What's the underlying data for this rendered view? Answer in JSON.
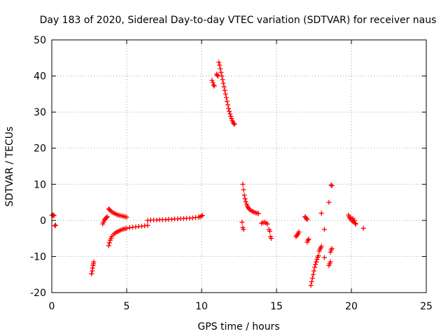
{
  "chart_data": {
    "type": "scatter",
    "title": "Day 183 of 2020, Sidereal Day-to-day VTEC variation (SDTVAR) for receiver naus",
    "xlabel": "GPS time / hours",
    "ylabel": "SDTVAR / TECUs",
    "xlim": [
      0,
      25
    ],
    "ylim": [
      -20,
      50
    ],
    "xticks": [
      0,
      5,
      10,
      15,
      20,
      25
    ],
    "yticks": [
      -20,
      -10,
      0,
      10,
      20,
      30,
      40,
      50
    ],
    "xtick_labels": [
      "0",
      "5",
      "10",
      "15",
      "20",
      "25"
    ],
    "ytick_labels": [
      "-20",
      "-10",
      "0",
      "10",
      "20",
      "30",
      "40",
      "50"
    ],
    "grid": true,
    "marker": "+",
    "color": "#ff0000",
    "series": [
      {
        "name": "SDTVAR",
        "points": [
          [
            0.0,
            1.5
          ],
          [
            0.05,
            1.4
          ],
          [
            0.1,
            1.5
          ],
          [
            0.15,
            1.3
          ],
          [
            0.2,
            -1.5
          ],
          [
            0.25,
            -1.3
          ],
          [
            2.65,
            -14.8
          ],
          [
            2.7,
            -14.0
          ],
          [
            2.72,
            -13.2
          ],
          [
            2.75,
            -12.5
          ],
          [
            2.78,
            -12.0
          ],
          [
            2.8,
            -11.5
          ],
          [
            3.4,
            -1.0
          ],
          [
            3.45,
            -0.5
          ],
          [
            3.5,
            0.0
          ],
          [
            3.55,
            0.3
          ],
          [
            3.6,
            0.6
          ],
          [
            3.65,
            0.8
          ],
          [
            3.7,
            1.0
          ],
          [
            3.8,
            -7.0
          ],
          [
            3.85,
            -6.2
          ],
          [
            3.9,
            -5.5
          ],
          [
            3.95,
            -5.0
          ],
          [
            4.0,
            -4.5
          ],
          [
            4.1,
            -4.0
          ],
          [
            4.2,
            -3.6
          ],
          [
            4.3,
            -3.3
          ],
          [
            4.4,
            -3.1
          ],
          [
            4.5,
            -2.9
          ],
          [
            4.6,
            -2.7
          ],
          [
            4.7,
            -2.5
          ],
          [
            4.8,
            -2.4
          ],
          [
            4.9,
            -2.3
          ],
          [
            5.0,
            -2.2
          ],
          [
            5.2,
            -2.0
          ],
          [
            5.4,
            -1.9
          ],
          [
            5.6,
            -1.8
          ],
          [
            5.8,
            -1.7
          ],
          [
            6.0,
            -1.6
          ],
          [
            6.2,
            -1.5
          ],
          [
            6.4,
            -1.4
          ],
          [
            3.8,
            3.2
          ],
          [
            3.85,
            3.0
          ],
          [
            3.9,
            2.7
          ],
          [
            4.0,
            2.4
          ],
          [
            4.1,
            2.1
          ],
          [
            4.2,
            1.9
          ],
          [
            4.3,
            1.7
          ],
          [
            4.4,
            1.5
          ],
          [
            4.5,
            1.4
          ],
          [
            4.6,
            1.3
          ],
          [
            4.7,
            1.2
          ],
          [
            4.8,
            1.1
          ],
          [
            4.9,
            1.0
          ],
          [
            5.0,
            0.9
          ],
          [
            6.4,
            0.0
          ],
          [
            6.6,
            0.1
          ],
          [
            6.8,
            0.1
          ],
          [
            7.0,
            0.1
          ],
          [
            7.2,
            0.2
          ],
          [
            7.4,
            0.2
          ],
          [
            7.6,
            0.2
          ],
          [
            7.8,
            0.3
          ],
          [
            8.0,
            0.3
          ],
          [
            8.2,
            0.4
          ],
          [
            8.4,
            0.4
          ],
          [
            8.6,
            0.5
          ],
          [
            8.8,
            0.5
          ],
          [
            9.0,
            0.6
          ],
          [
            9.2,
            0.6
          ],
          [
            9.4,
            0.7
          ],
          [
            9.6,
            0.8
          ],
          [
            9.8,
            0.9
          ],
          [
            9.9,
            1.0
          ],
          [
            10.0,
            1.2
          ],
          [
            10.05,
            1.4
          ],
          [
            10.7,
            38.8
          ],
          [
            10.75,
            38.2
          ],
          [
            10.8,
            37.5
          ],
          [
            10.85,
            37.2
          ],
          [
            11.0,
            40.5
          ],
          [
            11.05,
            40.2
          ],
          [
            11.1,
            40.0
          ],
          [
            11.15,
            43.8
          ],
          [
            11.2,
            43.0
          ],
          [
            11.25,
            42.0
          ],
          [
            11.3,
            41.0
          ],
          [
            11.35,
            40.0
          ],
          [
            11.4,
            39.0
          ],
          [
            11.45,
            38.0
          ],
          [
            11.5,
            37.0
          ],
          [
            11.55,
            36.0
          ],
          [
            11.6,
            35.0
          ],
          [
            11.65,
            34.0
          ],
          [
            11.7,
            33.0
          ],
          [
            11.75,
            32.0
          ],
          [
            11.8,
            31.0
          ],
          [
            11.85,
            30.2
          ],
          [
            11.9,
            29.5
          ],
          [
            11.95,
            28.8
          ],
          [
            12.0,
            28.2
          ],
          [
            12.05,
            27.6
          ],
          [
            12.1,
            27.2
          ],
          [
            12.15,
            26.8
          ],
          [
            12.2,
            26.6
          ],
          [
            12.7,
            -0.5
          ],
          [
            12.75,
            -2.0
          ],
          [
            12.8,
            -2.5
          ],
          [
            12.75,
            10.0
          ],
          [
            12.8,
            8.5
          ],
          [
            12.85,
            7.0
          ],
          [
            12.9,
            6.0
          ],
          [
            12.95,
            5.2
          ],
          [
            13.0,
            4.5
          ],
          [
            13.05,
            4.0
          ],
          [
            13.1,
            3.6
          ],
          [
            13.15,
            3.3
          ],
          [
            13.2,
            3.0
          ],
          [
            13.3,
            2.7
          ],
          [
            13.4,
            2.5
          ],
          [
            13.5,
            2.3
          ],
          [
            13.6,
            2.1
          ],
          [
            13.7,
            2.0
          ],
          [
            13.8,
            1.9
          ],
          [
            14.0,
            -0.8
          ],
          [
            14.1,
            -0.6
          ],
          [
            14.2,
            -0.5
          ],
          [
            14.3,
            -0.7
          ],
          [
            14.4,
            -1.0
          ],
          [
            14.5,
            -2.5
          ],
          [
            14.55,
            -3.0
          ],
          [
            14.6,
            -4.5
          ],
          [
            14.65,
            -5.0
          ],
          [
            16.3,
            -4.5
          ],
          [
            16.35,
            -4.2
          ],
          [
            16.4,
            -4.0
          ],
          [
            16.45,
            -3.6
          ],
          [
            16.5,
            -3.2
          ],
          [
            16.9,
            1.0
          ],
          [
            16.95,
            0.8
          ],
          [
            17.0,
            0.5
          ],
          [
            17.05,
            0.2
          ],
          [
            17.05,
            -6.0
          ],
          [
            17.1,
            -5.5
          ],
          [
            17.15,
            -5.2
          ],
          [
            17.3,
            -18.0
          ],
          [
            17.35,
            -17.0
          ],
          [
            17.4,
            -16.0
          ],
          [
            17.45,
            -15.0
          ],
          [
            17.5,
            -14.0
          ],
          [
            17.55,
            -13.0
          ],
          [
            17.6,
            -12.2
          ],
          [
            17.65,
            -11.5
          ],
          [
            17.7,
            -10.8
          ],
          [
            17.75,
            -10.2
          ],
          [
            17.8,
            -9.8
          ],
          [
            17.85,
            -8.5
          ],
          [
            17.9,
            -8.0
          ],
          [
            17.95,
            -7.6
          ],
          [
            18.0,
            -7.2
          ],
          [
            18.0,
            2.0
          ],
          [
            18.2,
            -2.5
          ],
          [
            18.2,
            -10.3
          ],
          [
            18.5,
            -12.5
          ],
          [
            18.55,
            -12.0
          ],
          [
            18.6,
            -11.5
          ],
          [
            18.6,
            -8.8
          ],
          [
            18.65,
            -8.2
          ],
          [
            18.7,
            -7.8
          ],
          [
            18.5,
            5.0
          ],
          [
            18.65,
            9.8
          ],
          [
            18.7,
            9.6
          ],
          [
            19.8,
            1.5
          ],
          [
            19.85,
            1.0
          ],
          [
            19.9,
            0.5
          ],
          [
            19.95,
            0.8
          ],
          [
            20.0,
            0.2
          ],
          [
            20.05,
            -0.2
          ],
          [
            20.1,
            0.5
          ],
          [
            20.15,
            -0.5
          ],
          [
            20.2,
            0.0
          ],
          [
            20.25,
            -0.8
          ],
          [
            20.3,
            -1.0
          ],
          [
            20.8,
            -2.2
          ]
        ]
      }
    ]
  }
}
